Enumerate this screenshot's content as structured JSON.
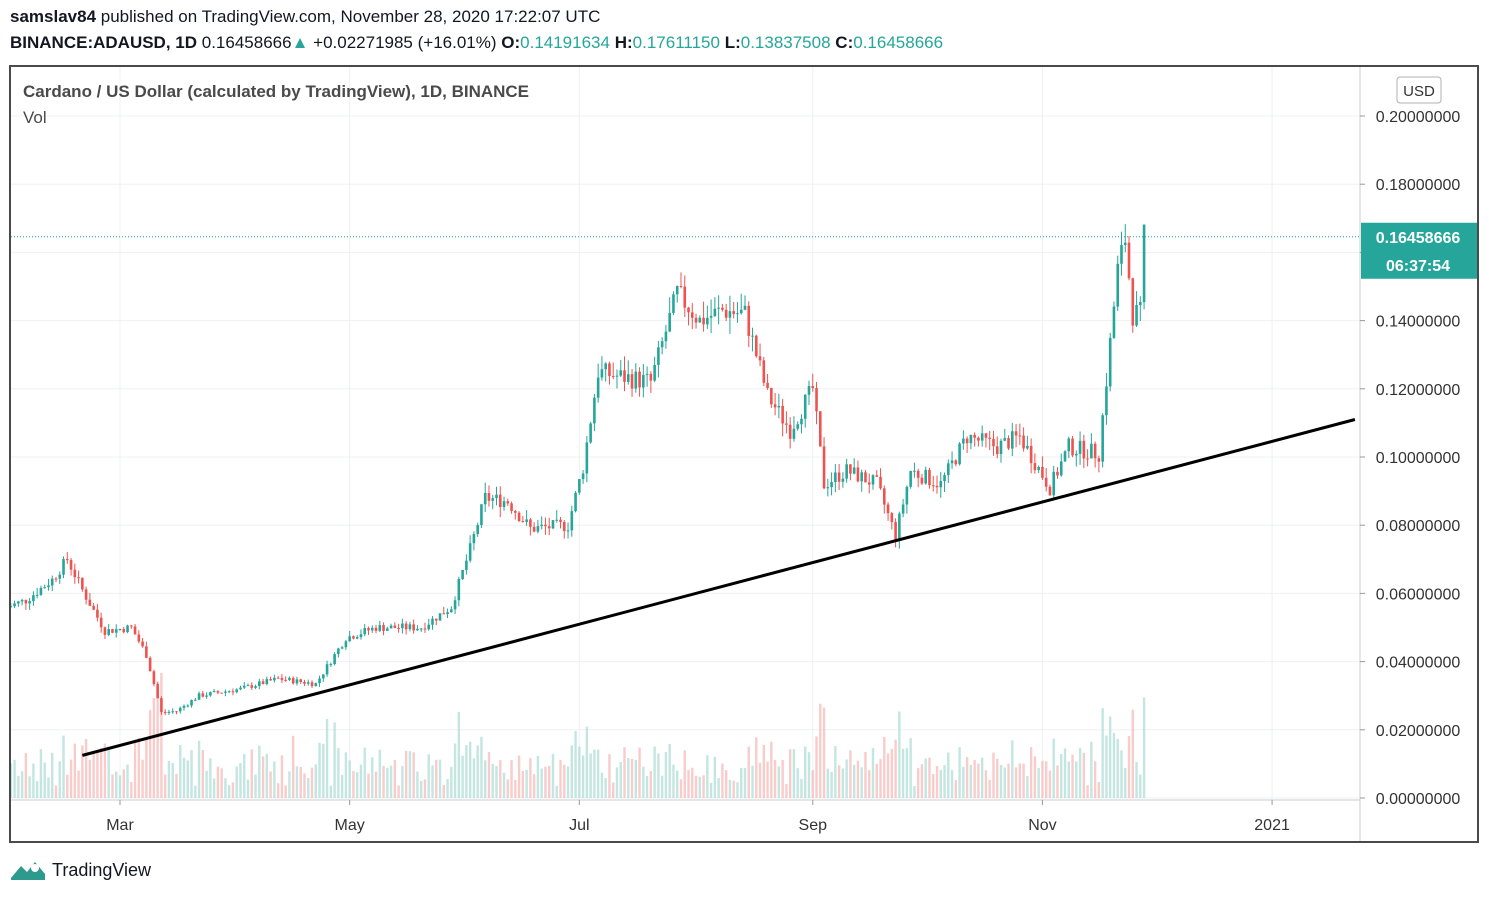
{
  "header": {
    "publisher": "samslav84",
    "published_text": "published on TradingView.com, November 28, 2020 17:22:07 UTC",
    "symbol": "BINANCE:ADAUSD, 1D",
    "last": "0.16458666",
    "change": "+0.02271985 (+16.01%)",
    "change_arrow": "▲",
    "o_label": "O:",
    "o": "0.14191634",
    "h_label": "H:",
    "h": "0.17611150",
    "l_label": "L:",
    "l": "0.13837508",
    "c_label": "C:",
    "c": "0.16458666"
  },
  "chart_data": {
    "type": "candlestick",
    "title": "Cardano / US Dollar (calculated by TradingView), 1D, BINANCE",
    "indicator": "Vol",
    "currency_button": "USD",
    "ylim": [
      0,
      0.2
    ],
    "y_ticks": [
      "0.20000000",
      "0.18000000",
      "0.16000000",
      "0.14000000",
      "0.12000000",
      "0.10000000",
      "0.08000000",
      "0.06000000",
      "0.04000000",
      "0.02000000",
      "0.00000000"
    ],
    "x_ticks": [
      {
        "label": "Mar",
        "date": "2020-03-01"
      },
      {
        "label": "May",
        "date": "2020-05-01"
      },
      {
        "label": "Jul",
        "date": "2020-07-01"
      },
      {
        "label": "Sep",
        "date": "2020-09-01"
      },
      {
        "label": "Nov",
        "date": "2020-11-01"
      },
      {
        "label": "2021",
        "date": "2021-01-01"
      }
    ],
    "last_price_label": "0.16458666",
    "countdown_label": "06:37:54",
    "trendline": [
      {
        "date": "2020-02-20",
        "price": 0.0125
      },
      {
        "date": "2021-01-23",
        "price": 0.111
      }
    ],
    "ohlc_keypoints": [
      {
        "date": "2020-01-31",
        "price": 0.056
      },
      {
        "date": "2020-02-05",
        "price": 0.058
      },
      {
        "date": "2020-02-12",
        "price": 0.064
      },
      {
        "date": "2020-02-16",
        "price": 0.07
      },
      {
        "date": "2020-02-20",
        "price": 0.061
      },
      {
        "date": "2020-02-26",
        "price": 0.049
      },
      {
        "date": "2020-03-04",
        "price": 0.05
      },
      {
        "date": "2020-03-08",
        "price": 0.042
      },
      {
        "date": "2020-03-12",
        "price": 0.025
      },
      {
        "date": "2020-03-16",
        "price": 0.0255
      },
      {
        "date": "2020-03-22",
        "price": 0.03
      },
      {
        "date": "2020-04-02",
        "price": 0.032
      },
      {
        "date": "2020-04-12",
        "price": 0.035
      },
      {
        "date": "2020-04-22",
        "price": 0.0335
      },
      {
        "date": "2020-04-30",
        "price": 0.047
      },
      {
        "date": "2020-05-08",
        "price": 0.05
      },
      {
        "date": "2020-05-20",
        "price": 0.05
      },
      {
        "date": "2020-05-28",
        "price": 0.056
      },
      {
        "date": "2020-06-02",
        "price": 0.073
      },
      {
        "date": "2020-06-06",
        "price": 0.088
      },
      {
        "date": "2020-06-12",
        "price": 0.087
      },
      {
        "date": "2020-06-18",
        "price": 0.079
      },
      {
        "date": "2020-06-28",
        "price": 0.08
      },
      {
        "date": "2020-07-02",
        "price": 0.097
      },
      {
        "date": "2020-07-06",
        "price": 0.125
      },
      {
        "date": "2020-07-10",
        "price": 0.124
      },
      {
        "date": "2020-07-20",
        "price": 0.122
      },
      {
        "date": "2020-07-27",
        "price": 0.148
      },
      {
        "date": "2020-08-02",
        "price": 0.14
      },
      {
        "date": "2020-08-08",
        "price": 0.143
      },
      {
        "date": "2020-08-14",
        "price": 0.142
      },
      {
        "date": "2020-08-20",
        "price": 0.118
      },
      {
        "date": "2020-08-26",
        "price": 0.108
      },
      {
        "date": "2020-09-01",
        "price": 0.12
      },
      {
        "date": "2020-09-04",
        "price": 0.092
      },
      {
        "date": "2020-09-10",
        "price": 0.096
      },
      {
        "date": "2020-09-18",
        "price": 0.092
      },
      {
        "date": "2020-09-23",
        "price": 0.077
      },
      {
        "date": "2020-09-27",
        "price": 0.096
      },
      {
        "date": "2020-10-05",
        "price": 0.092
      },
      {
        "date": "2020-10-12",
        "price": 0.106
      },
      {
        "date": "2020-10-20",
        "price": 0.103
      },
      {
        "date": "2020-10-26",
        "price": 0.106
      },
      {
        "date": "2020-11-03",
        "price": 0.091
      },
      {
        "date": "2020-11-08",
        "price": 0.103
      },
      {
        "date": "2020-11-16",
        "price": 0.101
      },
      {
        "date": "2020-11-21",
        "price": 0.155
      },
      {
        "date": "2020-11-23",
        "price": 0.164
      },
      {
        "date": "2020-11-25",
        "price": 0.142
      },
      {
        "date": "2020-11-27",
        "price": 0.142
      },
      {
        "date": "2020-11-28",
        "price": 0.1646
      }
    ]
  },
  "footer": {
    "brand": "TradingView"
  },
  "colors": {
    "up": "#26a69a",
    "down": "#ef5350",
    "grid": "#eef0f3",
    "accent": "#26a69a"
  }
}
